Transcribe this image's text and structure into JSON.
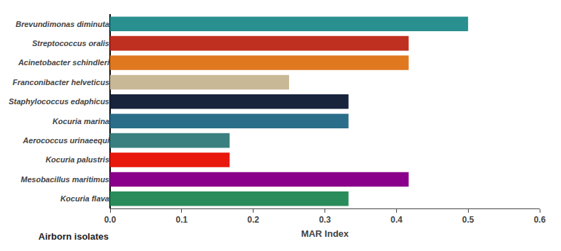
{
  "chart_data": {
    "type": "bar",
    "orientation": "horizontal",
    "categories": [
      "Kocuria flava",
      "Mesobacillus maritimus",
      "Kocuria palustris",
      "Aerococcus urinaeequi",
      "Kocuria marina",
      "Staphylococcus edaphicus",
      "Franconibacter helveticus",
      "Acinetobacter schindleri",
      "Streptococcus oralis",
      "Brevundimonas diminuta"
    ],
    "values": [
      0.333,
      0.417,
      0.167,
      0.167,
      0.333,
      0.333,
      0.25,
      0.417,
      0.417,
      0.5
    ],
    "colors": [
      "#2a8c5a",
      "#8b008b",
      "#e8180c",
      "#3a8080",
      "#2a6e8a",
      "#18243c",
      "#c8b896",
      "#e07820",
      "#c03020",
      "#2a8f8f"
    ],
    "xlabel": "MAR Index",
    "annotations": [
      "Airborn isolates"
    ],
    "xlim": [
      0.0,
      0.6
    ],
    "xticks": [
      {
        "value": 0.0,
        "label": "0.0"
      },
      0.1,
      0.2,
      0.3,
      0.4,
      0.5,
      0.6
    ],
    "grid": false
  }
}
